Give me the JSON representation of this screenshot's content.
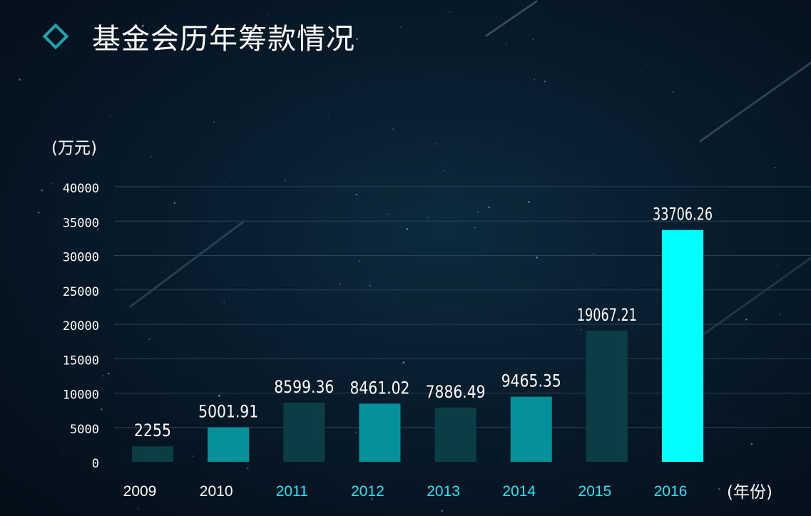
{
  "title": "基金会历年筹款情况",
  "chart_data": {
    "type": "bar",
    "title": "基金会历年筹款情况",
    "ylabel": "(万元)",
    "xlabel": "(年份)",
    "categories": [
      "2009",
      "2010",
      "2011",
      "2012",
      "2013",
      "2014",
      "2015",
      "2016"
    ],
    "values": [
      2255,
      5001.91,
      8599.36,
      8461.02,
      7886.49,
      9465.35,
      19067.21,
      33706.26
    ],
    "value_labels": [
      "2255",
      "5001.91",
      "8599.36",
      "8461.02",
      "7886.49",
      "9465.35",
      "19067.21",
      "33706.26"
    ],
    "ylim": [
      0,
      40000
    ],
    "yticks": [
      0,
      5000,
      10000,
      15000,
      20000,
      25000,
      30000,
      35000,
      40000
    ],
    "ytick_labels": [
      "0",
      "5000",
      "10000",
      "15000",
      "20000",
      "25000",
      "30000",
      "35000",
      "40000"
    ],
    "grid": true,
    "legend": "none",
    "bar_colors": [
      "#0b3d45",
      "#04919a",
      "#0b3d45",
      "#04919a",
      "#0b3d45",
      "#04919a",
      "#0b3d45",
      "#00ffff"
    ],
    "category_label_colors": [
      "#ffffff",
      "#ffffff",
      "#27e3f0",
      "#27e3f0",
      "#27e3f0",
      "#27e3f0",
      "#27e3f0",
      "#27e3f0"
    ]
  },
  "colors": {
    "accent": "#1aa4b0",
    "text": "#ffffff",
    "gridline": "#2a4254",
    "highlight_bar": "#00ffff"
  }
}
